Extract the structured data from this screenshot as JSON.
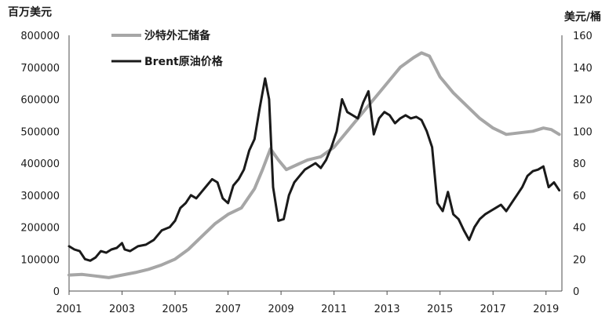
{
  "chart_data": {
    "type": "line",
    "left_axis": {
      "unit_label": "百万美元",
      "ylim": [
        0,
        800000
      ],
      "ticks": [
        "0",
        "100000",
        "200000",
        "300000",
        "400000",
        "500000",
        "600000",
        "700000",
        "800000"
      ]
    },
    "right_axis": {
      "unit_label": "美元/桶",
      "ylim": [
        0,
        160
      ],
      "ticks": [
        "0",
        "20",
        "40",
        "60",
        "80",
        "100",
        "120",
        "140",
        "160"
      ]
    },
    "x_axis": {
      "xlim": [
        2001,
        2019.6
      ],
      "ticks": [
        "2001",
        "2003",
        "2005",
        "2007",
        "2009",
        "2011",
        "2013",
        "2015",
        "2017",
        "2019"
      ]
    },
    "legend_position": "top-left",
    "series": [
      {
        "name": "沙特外汇储备",
        "axis": "left",
        "color": "#a6a6a6",
        "x": [
          2001,
          2001.5,
          2002,
          2002.5,
          2003,
          2003.5,
          2004,
          2004.5,
          2005,
          2005.5,
          2006,
          2006.5,
          2007,
          2007.5,
          2008,
          2008.3,
          2008.6,
          2008.9,
          2009.2,
          2009.6,
          2010,
          2010.5,
          2011,
          2011.5,
          2012,
          2012.5,
          2013,
          2013.5,
          2014,
          2014.3,
          2014.6,
          2015,
          2015.5,
          2016,
          2016.5,
          2017,
          2017.5,
          2018,
          2018.5,
          2018.9,
          2019.2,
          2019.5
        ],
        "values": [
          50000,
          52000,
          47000,
          42000,
          50000,
          58000,
          68000,
          82000,
          100000,
          130000,
          170000,
          210000,
          240000,
          260000,
          320000,
          380000,
          445000,
          410000,
          380000,
          395000,
          410000,
          420000,
          450000,
          500000,
          550000,
          600000,
          650000,
          700000,
          730000,
          745000,
          735000,
          670000,
          620000,
          580000,
          540000,
          510000,
          490000,
          495000,
          500000,
          510000,
          505000,
          490000
        ]
      },
      {
        "name": "Brent原油价格",
        "axis": "right",
        "color": "#1a1a1a",
        "x": [
          2001,
          2001.2,
          2001.4,
          2001.6,
          2001.8,
          2002,
          2002.2,
          2002.4,
          2002.6,
          2002.8,
          2003,
          2003.1,
          2003.3,
          2003.6,
          2003.9,
          2004.2,
          2004.5,
          2004.8,
          2005,
          2005.2,
          2005.4,
          2005.6,
          2005.8,
          2006,
          2006.2,
          2006.4,
          2006.6,
          2006.8,
          2007,
          2007.2,
          2007.4,
          2007.6,
          2007.8,
          2008,
          2008.2,
          2008.4,
          2008.55,
          2008.7,
          2008.9,
          2009.1,
          2009.3,
          2009.5,
          2009.7,
          2009.9,
          2010.1,
          2010.3,
          2010.5,
          2010.7,
          2010.9,
          2011.1,
          2011.3,
          2011.5,
          2011.7,
          2011.9,
          2012.1,
          2012.3,
          2012.5,
          2012.7,
          2012.9,
          2013.1,
          2013.3,
          2013.5,
          2013.7,
          2013.9,
          2014.1,
          2014.3,
          2014.5,
          2014.7,
          2014.9,
          2015.1,
          2015.3,
          2015.5,
          2015.7,
          2015.9,
          2016.1,
          2016.3,
          2016.5,
          2016.7,
          2016.9,
          2017.1,
          2017.3,
          2017.5,
          2017.7,
          2017.9,
          2018.1,
          2018.3,
          2018.5,
          2018.7,
          2018.9,
          2019.1,
          2019.3,
          2019.5
        ],
        "values": [
          28,
          26,
          25,
          20,
          19,
          21,
          25,
          24,
          26,
          27,
          30,
          26,
          25,
          28,
          29,
          32,
          38,
          40,
          44,
          52,
          55,
          60,
          58,
          62,
          66,
          70,
          68,
          58,
          55,
          66,
          70,
          76,
          88,
          95,
          115,
          133,
          120,
          65,
          44,
          45,
          60,
          68,
          72,
          76,
          78,
          80,
          77,
          82,
          90,
          100,
          120,
          112,
          110,
          108,
          118,
          125,
          98,
          108,
          112,
          110,
          105,
          108,
          110,
          108,
          109,
          107,
          100,
          90,
          55,
          50,
          62,
          48,
          45,
          38,
          32,
          40,
          45,
          48,
          50,
          52,
          54,
          50,
          55,
          60,
          65,
          72,
          75,
          76,
          78,
          65,
          68,
          63
        ]
      }
    ]
  }
}
